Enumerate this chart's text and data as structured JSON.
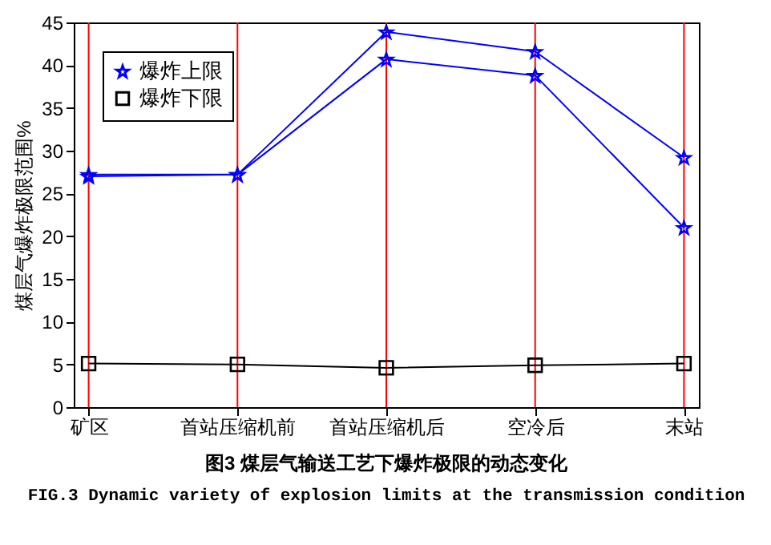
{
  "chart_data": {
    "type": "line",
    "ylabel": "煤层气爆炸极限范围%",
    "categories": [
      "矿区",
      "首站压缩机前",
      "首站压缩机后",
      "空冷后",
      "末站"
    ],
    "series": [
      {
        "name": "爆炸上限",
        "color": "#0000ff",
        "marker": "star",
        "values": [
          27.2,
          27.2,
          43.9,
          41.6,
          29.2
        ]
      },
      {
        "color": "#0000ff",
        "marker": "star",
        "values": [
          27.0,
          27.2,
          40.7,
          38.8,
          21.0
        ]
      },
      {
        "name": "爆炸下限",
        "color": "#000000",
        "marker": "square",
        "values": [
          5.1,
          5.0,
          4.6,
          4.9,
          5.1
        ]
      }
    ],
    "ylim": [
      0,
      45
    ],
    "yticks": [
      0,
      5,
      10,
      15,
      20,
      25,
      30,
      35,
      40,
      45
    ],
    "ref_lines": [
      {
        "axis": "x",
        "value": "矿区",
        "color": "#ff0000"
      },
      {
        "axis": "x",
        "value": "首站压缩机前",
        "color": "#ff0000"
      },
      {
        "axis": "x",
        "value": "首站压缩机后",
        "color": "#ff0000"
      },
      {
        "axis": "x",
        "value": "空冷后",
        "color": "#ff0000"
      },
      {
        "axis": "x",
        "value": "末站",
        "color": "#ff0000"
      }
    ],
    "legend": "top left",
    "annotations": [
      "图3 煤层气输送工艺下爆炸极限的动态变化",
      "FIG.3 Dynamic variety of explosion limits at the transmission condition"
    ]
  }
}
